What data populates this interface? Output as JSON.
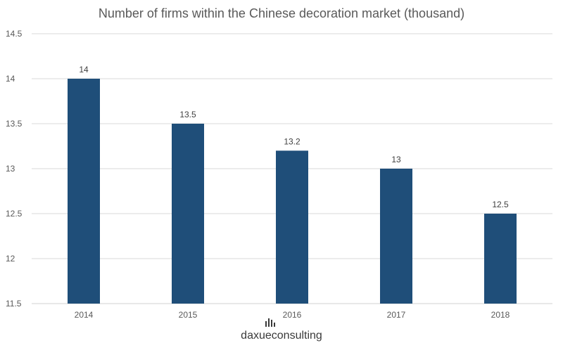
{
  "chart_data": {
    "type": "bar",
    "title": "Number of firms within the Chinese decoration market (thousand)",
    "xlabel": "",
    "ylabel": "",
    "categories": [
      "2014",
      "2015",
      "2016",
      "2017",
      "2018"
    ],
    "values": [
      14,
      13.5,
      13.2,
      13,
      12.5
    ],
    "ylim": [
      11.5,
      14.5
    ],
    "yticks": [
      11.5,
      12,
      12.5,
      13,
      13.5,
      14,
      14.5
    ],
    "ytick_labels": [
      "11.5",
      "12",
      "12.5",
      "13",
      "13.5",
      "14",
      "14.5"
    ],
    "data_labels": [
      "14",
      "13.5",
      "13.2",
      "13",
      "12.5"
    ],
    "grid": true,
    "legend": "none",
    "bar_color": "#1f4e79",
    "grid_color": "#d9d9d9"
  },
  "logo": {
    "name": "daxueconsulting",
    "icon": "bar-chart-logo-icon",
    "color": "#3a3a3a"
  }
}
